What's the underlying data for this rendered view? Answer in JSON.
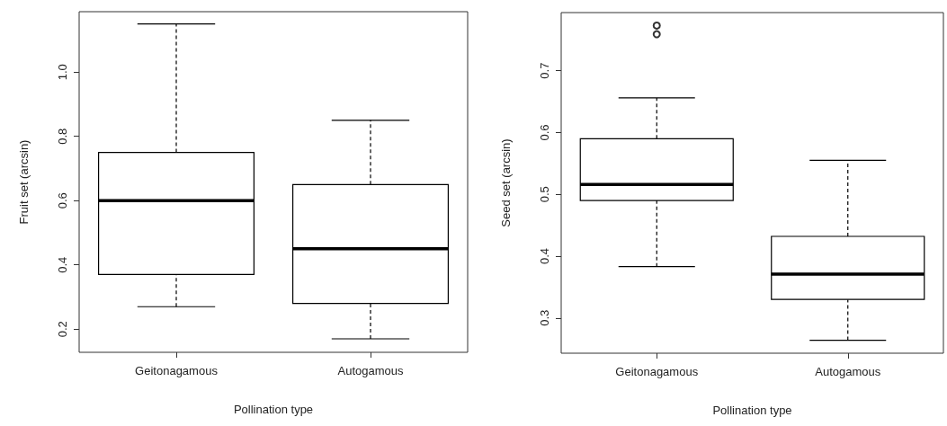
{
  "chart_data": [
    {
      "type": "box",
      "categories": [
        "Geitonagamous",
        "Autogamous"
      ],
      "xlabel": "Pollination type",
      "ylabel": "Fruit set (arcsin)",
      "ylim": [
        0.128,
        1.188
      ],
      "yticks": [
        0.2,
        0.4,
        0.6,
        0.8,
        {
          "value": 1,
          "label": "1.0"
        }
      ],
      "boxes": [
        {
          "low": 0.27,
          "q1": 0.37,
          "median": 0.6,
          "q3": 0.75,
          "high": 1.15
        },
        {
          "low": 0.17,
          "q1": 0.28,
          "median": 0.45,
          "q3": 0.65,
          "high": 0.85
        }
      ]
    },
    {
      "type": "box",
      "categories": [
        "Geitonagamous",
        "Autogamous"
      ],
      "xlabel": "Pollination type",
      "ylabel": "Seed set (arcsin)",
      "ylim": [
        0.243,
        0.794
      ],
      "yticks": [
        0.3,
        0.4,
        0.5,
        0.6,
        0.7
      ],
      "boxes": [
        {
          "low": 0.383,
          "q1": 0.49,
          "median": 0.516,
          "q3": 0.59,
          "high": 0.656,
          "outliers": [
            0.773,
            0.759
          ]
        },
        {
          "low": 0.264,
          "q1": 0.33,
          "median": 0.371,
          "q3": 0.432,
          "high": 0.555
        }
      ]
    }
  ]
}
